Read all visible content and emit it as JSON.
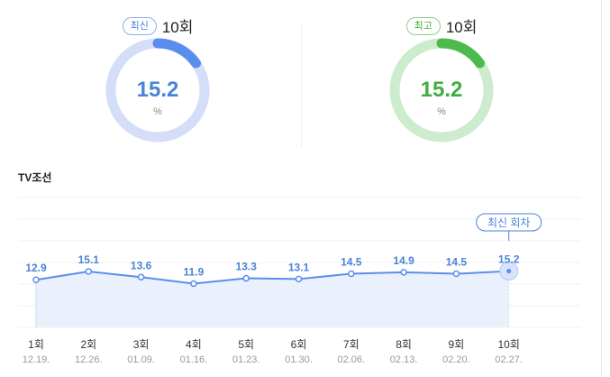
{
  "gauges": [
    {
      "badge": "최신",
      "round": "10회",
      "value": "15.2",
      "unit": "%",
      "ratio": 0.152,
      "color": "#5b8def",
      "track": "#d4def8"
    },
    {
      "badge": "최고",
      "round": "10회",
      "value": "15.2",
      "unit": "%",
      "ratio": 0.152,
      "color": "#4dba4d",
      "track": "#cdeccd"
    }
  ],
  "channel": "TV조선",
  "latest_tag": "최신 회차",
  "chart_data": {
    "type": "area",
    "categories": [
      "1회",
      "2회",
      "3회",
      "4회",
      "5회",
      "6회",
      "7회",
      "8회",
      "9회",
      "10회"
    ],
    "dates": [
      "12.19.",
      "12.26.",
      "01.09.",
      "01.16.",
      "01.23.",
      "01.30.",
      "02.06.",
      "02.13.",
      "02.20.",
      "02.27."
    ],
    "values": [
      12.9,
      15.1,
      13.6,
      11.9,
      13.3,
      13.1,
      14.5,
      14.9,
      14.5,
      15.2
    ],
    "labels": [
      "12.9",
      "15.1",
      "13.6",
      "11.9",
      "13.3",
      "13.1",
      "14.5",
      "14.9",
      "14.5",
      "15.2"
    ],
    "series": [
      {
        "values": [
          12.9,
          15.1,
          13.6,
          11.9,
          13.3,
          13.1,
          14.5,
          14.9,
          14.5,
          15.2
        ]
      }
    ],
    "line_color": "#5b8def",
    "fill_color": "#eaf1fd",
    "grid": true,
    "highlight_index": 9
  }
}
